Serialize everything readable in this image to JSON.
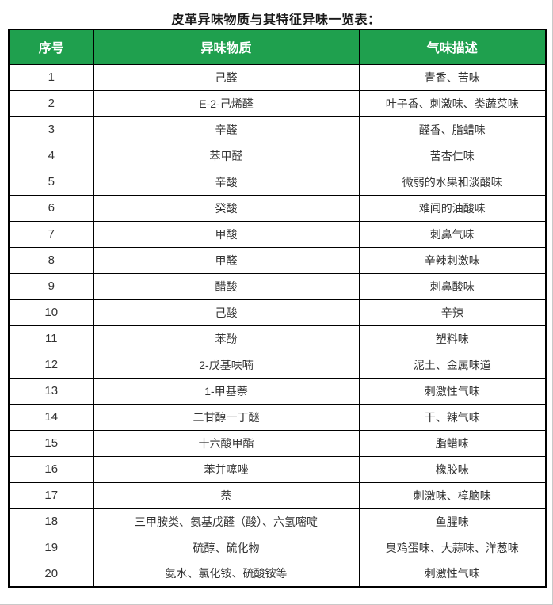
{
  "page": {
    "title": "皮革异味物质与其特征异味一览表："
  },
  "colors": {
    "header_bg": "#1fa04e",
    "header_text": "#ffffff",
    "border": "#000000",
    "body_text": "#333333"
  },
  "table": {
    "headers": [
      "序号",
      "异味物质",
      "气味描述"
    ],
    "rows": [
      {
        "no": "1",
        "substance": "己醛",
        "odor": "青香、苦味"
      },
      {
        "no": "2",
        "substance": "E-2-己烯醛",
        "odor": "叶子香、刺激味、类蔬菜味"
      },
      {
        "no": "3",
        "substance": "辛醛",
        "odor": "醛香、脂蜡味"
      },
      {
        "no": "4",
        "substance": "苯甲醛",
        "odor": "苦杏仁味"
      },
      {
        "no": "5",
        "substance": "辛酸",
        "odor": "微弱的水果和淡酸味"
      },
      {
        "no": "6",
        "substance": "癸酸",
        "odor": "难闻的油酸味"
      },
      {
        "no": "7",
        "substance": "甲酸",
        "odor": "刺鼻气味"
      },
      {
        "no": "8",
        "substance": "甲醛",
        "odor": "辛辣刺激味"
      },
      {
        "no": "9",
        "substance": "醋酸",
        "odor": "刺鼻酸味"
      },
      {
        "no": "10",
        "substance": "己酸",
        "odor": "辛辣"
      },
      {
        "no": "11",
        "substance": "苯酚",
        "odor": "塑料味"
      },
      {
        "no": "12",
        "substance": "2-戊基呋喃",
        "odor": "泥土、金属味道"
      },
      {
        "no": "13",
        "substance": "1-甲基萘",
        "odor": "刺激性气味"
      },
      {
        "no": "14",
        "substance": "二甘醇一丁醚",
        "odor": "干、辣气味"
      },
      {
        "no": "15",
        "substance": "十六酸甲酯",
        "odor": "脂蜡味"
      },
      {
        "no": "16",
        "substance": "苯并噻唑",
        "odor": "橡胶味"
      },
      {
        "no": "17",
        "substance": "萘",
        "odor": "刺激味、樟脑味"
      },
      {
        "no": "18",
        "substance": "三甲胺类、氨基戊醛（酸）、六氢嘧啶",
        "odor": "鱼腥味"
      },
      {
        "no": "19",
        "substance": "硫醇、硫化物",
        "odor": "臭鸡蛋味、大蒜味、洋葱味"
      },
      {
        "no": "20",
        "substance": "氨水、氯化铵、硫酸铵等",
        "odor": "刺激性气味"
      }
    ]
  }
}
